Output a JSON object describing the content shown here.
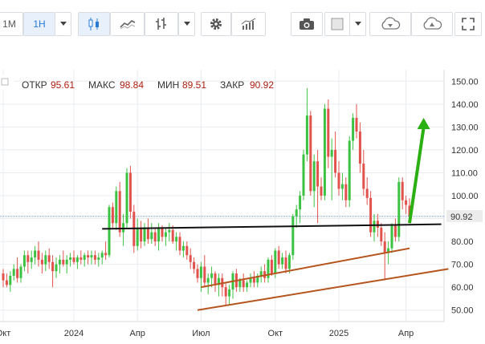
{
  "toolbar": {
    "tf_1m": "1M",
    "tf_1h": "1H"
  },
  "ohlc": {
    "open_label": "ОТКР",
    "open": "95.61",
    "high_label": "МАКС",
    "high": "98.84",
    "low_label": "МИН",
    "low": "89.51",
    "close_label": "ЗАКР",
    "close": "90.92"
  },
  "chart_data": {
    "type": "candlestick",
    "y_ticks": [
      50,
      60,
      70,
      80,
      90,
      100,
      110,
      120,
      130,
      140,
      150
    ],
    "y_tick_labels": [
      "50.00",
      "60.00",
      "70.00",
      "80.00",
      "90.00",
      "100.00",
      "110.00",
      "120.00",
      "130.00",
      "140.00",
      "150.00"
    ],
    "ylim": [
      45,
      155
    ],
    "x_labels": [
      {
        "x": 0,
        "label": "Окт"
      },
      {
        "x": 20,
        "label": "2024"
      },
      {
        "x": 38,
        "label": "Апр"
      },
      {
        "x": 56,
        "label": "Июл"
      },
      {
        "x": 77,
        "label": "Окт"
      },
      {
        "x": 95,
        "label": "2025"
      },
      {
        "x": 114,
        "label": "Апр"
      }
    ],
    "last_price": 90.92,
    "last_price_label": "90.92",
    "candles": [
      [
        0,
        66,
        68,
        60,
        63
      ],
      [
        1,
        63,
        66,
        60,
        61
      ],
      [
        2,
        61,
        67,
        58,
        65
      ],
      [
        3,
        65,
        70,
        63,
        68
      ],
      [
        4,
        68,
        73,
        62,
        64
      ],
      [
        5,
        64,
        70,
        62,
        69
      ],
      [
        6,
        69,
        76,
        67,
        74
      ],
      [
        7,
        74,
        76,
        66,
        71
      ],
      [
        8,
        71,
        76,
        68,
        73
      ],
      [
        9,
        73,
        78,
        70,
        76
      ],
      [
        10,
        76,
        80,
        69,
        72
      ],
      [
        11,
        72,
        75,
        66,
        70
      ],
      [
        12,
        70,
        76,
        67,
        74
      ],
      [
        13,
        74,
        77,
        68,
        71
      ],
      [
        14,
        71,
        74,
        60,
        67
      ],
      [
        15,
        67,
        73,
        64,
        70
      ],
      [
        16,
        70,
        74,
        66,
        72
      ],
      [
        17,
        72,
        76,
        69,
        70
      ],
      [
        18,
        70,
        74,
        66,
        72
      ],
      [
        19,
        72,
        75,
        69,
        73
      ],
      [
        20,
        73,
        76,
        70,
        71
      ],
      [
        21,
        71,
        74,
        68,
        73
      ],
      [
        22,
        73,
        76,
        70,
        72
      ],
      [
        23,
        72,
        75,
        69,
        74
      ],
      [
        24,
        74,
        76,
        70,
        73
      ],
      [
        25,
        73,
        76,
        70,
        74
      ],
      [
        26,
        74,
        76,
        70,
        72
      ],
      [
        27,
        72,
        75,
        69,
        73
      ],
      [
        28,
        73,
        76,
        70,
        75
      ],
      [
        29,
        75,
        80,
        72,
        74
      ],
      [
        30,
        74,
        96,
        73,
        95
      ],
      [
        31,
        95,
        97,
        86,
        88
      ],
      [
        32,
        88,
        104,
        85,
        102
      ],
      [
        33,
        102,
        106,
        82,
        84
      ],
      [
        34,
        84,
        92,
        78,
        88
      ],
      [
        35,
        88,
        112,
        86,
        110
      ],
      [
        36,
        110,
        113,
        90,
        93
      ],
      [
        37,
        93,
        96,
        75,
        78
      ],
      [
        38,
        78,
        90,
        76,
        86
      ],
      [
        39,
        86,
        89,
        77,
        80
      ],
      [
        40,
        80,
        88,
        78,
        86
      ],
      [
        41,
        86,
        90,
        79,
        81
      ],
      [
        42,
        81,
        88,
        79,
        84
      ],
      [
        43,
        84,
        86,
        78,
        80
      ],
      [
        44,
        80,
        88,
        76,
        86
      ],
      [
        45,
        86,
        87,
        80,
        82
      ],
      [
        46,
        82,
        86,
        78,
        84
      ],
      [
        47,
        84,
        88,
        80,
        85
      ],
      [
        48,
        85,
        87,
        79,
        80
      ],
      [
        49,
        80,
        84,
        76,
        82
      ],
      [
        50,
        82,
        84,
        74,
        76
      ],
      [
        51,
        76,
        80,
        73,
        78
      ],
      [
        52,
        78,
        80,
        72,
        74
      ],
      [
        53,
        74,
        77,
        68,
        71
      ],
      [
        54,
        71,
        73,
        66,
        68
      ],
      [
        55,
        68,
        70,
        62,
        64
      ],
      [
        56,
        64,
        71,
        58,
        69
      ],
      [
        57,
        69,
        74,
        60,
        62
      ],
      [
        58,
        62,
        66,
        57,
        64
      ],
      [
        59,
        64,
        69,
        60,
        66
      ],
      [
        60,
        66,
        67,
        58,
        61
      ],
      [
        61,
        61,
        66,
        56,
        64
      ],
      [
        62,
        64,
        66,
        56,
        60
      ],
      [
        63,
        60,
        62,
        52,
        56
      ],
      [
        64,
        56,
        61,
        52,
        59
      ],
      [
        65,
        59,
        67,
        55,
        66
      ],
      [
        66,
        66,
        68,
        58,
        60
      ],
      [
        67,
        60,
        64,
        58,
        63
      ],
      [
        68,
        63,
        66,
        58,
        60
      ],
      [
        69,
        60,
        63,
        58,
        62
      ],
      [
        70,
        62,
        66,
        60,
        64
      ],
      [
        71,
        64,
        67,
        60,
        62
      ],
      [
        72,
        62,
        66,
        60,
        65
      ],
      [
        73,
        65,
        69,
        62,
        67
      ],
      [
        74,
        67,
        70,
        62,
        64
      ],
      [
        75,
        64,
        73,
        62,
        72
      ],
      [
        76,
        72,
        74,
        65,
        66
      ],
      [
        77,
        66,
        77,
        64,
        76
      ],
      [
        78,
        76,
        78,
        68,
        70
      ],
      [
        79,
        70,
        75,
        68,
        73
      ],
      [
        80,
        73,
        76,
        66,
        68
      ],
      [
        81,
        68,
        75,
        66,
        74
      ],
      [
        82,
        74,
        92,
        72,
        91
      ],
      [
        83,
        91,
        96,
        86,
        94
      ],
      [
        84,
        94,
        102,
        88,
        100
      ],
      [
        85,
        100,
        120,
        98,
        118
      ],
      [
        86,
        118,
        147,
        115,
        135
      ],
      [
        87,
        135,
        137,
        100,
        102
      ],
      [
        88,
        102,
        118,
        95,
        115
      ],
      [
        89,
        115,
        120,
        88,
        104
      ],
      [
        90,
        104,
        108,
        98,
        100
      ],
      [
        91,
        100,
        140,
        98,
        138
      ],
      [
        92,
        138,
        142,
        112,
        117
      ],
      [
        93,
        117,
        125,
        98,
        120
      ],
      [
        94,
        120,
        128,
        108,
        110
      ],
      [
        95,
        110,
        115,
        100,
        103
      ],
      [
        96,
        103,
        110,
        98,
        105
      ],
      [
        97,
        105,
        108,
        95,
        98
      ],
      [
        98,
        98,
        126,
        95,
        124
      ],
      [
        99,
        124,
        136,
        120,
        134
      ],
      [
        100,
        134,
        140,
        125,
        128
      ],
      [
        101,
        128,
        132,
        110,
        114
      ],
      [
        102,
        114,
        120,
        100,
        103
      ],
      [
        103,
        103,
        108,
        96,
        99
      ],
      [
        104,
        99,
        102,
        82,
        84
      ],
      [
        105,
        84,
        92,
        80,
        89
      ],
      [
        106,
        89,
        92,
        82,
        86
      ],
      [
        107,
        86,
        88,
        78,
        80
      ],
      [
        108,
        80,
        84,
        63,
        75
      ],
      [
        109,
        75,
        80,
        70,
        77
      ],
      [
        110,
        77,
        88,
        75,
        87
      ],
      [
        111,
        87,
        90,
        80,
        82
      ],
      [
        112,
        82,
        108,
        80,
        106
      ],
      [
        113,
        106,
        108,
        94,
        98
      ],
      [
        114,
        98,
        100,
        92,
        96
      ],
      [
        115,
        95.61,
        98.84,
        89.51,
        90.92
      ]
    ],
    "lines": [
      {
        "color": "#111111",
        "width": 2,
        "x1": 28,
        "y1": 85.5,
        "x2": 124,
        "y2": 87.5
      },
      {
        "color": "#b5541c",
        "width": 2,
        "x1": 56,
        "y1": 60,
        "x2": 115,
        "y2": 77
      },
      {
        "color": "#b5541c",
        "width": 2,
        "x1": 55,
        "y1": 50,
        "x2": 126,
        "y2": 68
      }
    ],
    "arrow": {
      "color": "#2ab013",
      "x_from": 115,
      "y_from": 88,
      "x_to": 119,
      "y_to": 134
    },
    "up_color": "#3cc242",
    "down_color": "#e2524c",
    "price_line_color": "#6f8fd6",
    "grid_color": "#e9ecef"
  }
}
